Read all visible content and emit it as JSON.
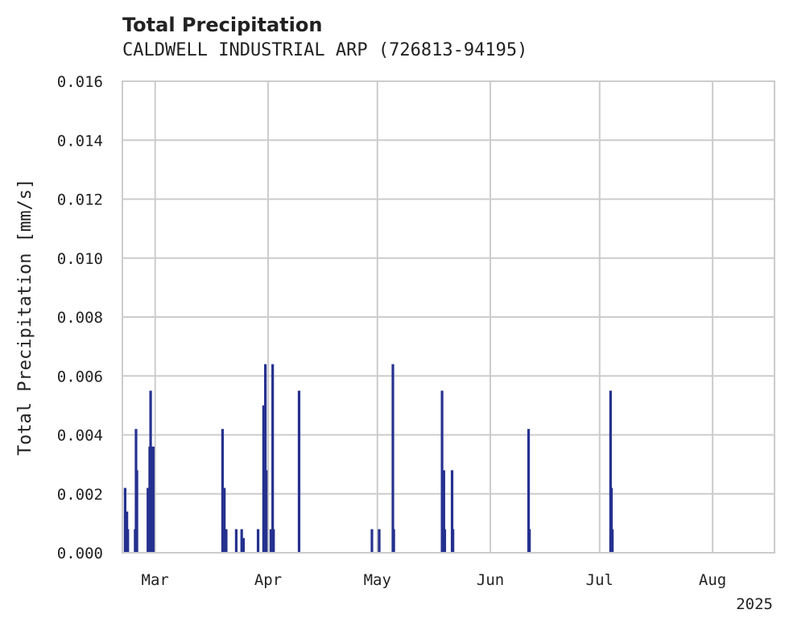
{
  "chart_data": {
    "type": "bar",
    "title": "Total Precipitation",
    "subtitle": "CALDWELL INDUSTRIAL ARP (726813-94195)",
    "ylabel": "Total Precipitation [mm/s]",
    "xlabel": "",
    "ylim": [
      0,
      0.016
    ],
    "yticks": [
      "0.000",
      "0.002",
      "0.004",
      "0.006",
      "0.008",
      "0.010",
      "0.012",
      "0.014",
      "0.016"
    ],
    "xlim": [
      "2025-02-20",
      "2025-08-18"
    ],
    "xticks": [
      {
        "date": "2025-03-01",
        "label": "Mar"
      },
      {
        "date": "2025-04-01",
        "label": "Apr"
      },
      {
        "date": "2025-05-01",
        "label": "May"
      },
      {
        "date": "2025-06-01",
        "label": "Jun"
      },
      {
        "date": "2025-07-01",
        "label": "Jul"
      },
      {
        "date": "2025-08-01",
        "label": "Aug"
      }
    ],
    "year_label": "2025",
    "grid": true,
    "color": "#25318f",
    "x": [
      "2025-02-20T18:00",
      "2025-02-21T06:00",
      "2025-02-21T12:00",
      "2025-02-23T12:00",
      "2025-02-23T18:00",
      "2025-02-24T00:00",
      "2025-02-27T00:00",
      "2025-02-27T12:00",
      "2025-02-27T18:00",
      "2025-02-28T00:00",
      "2025-02-28T06:00",
      "2025-02-28T12:00",
      "2025-03-19T12:00",
      "2025-03-20T00:00",
      "2025-03-20T12:00",
      "2025-03-23T06:00",
      "2025-03-24T18:00",
      "2025-03-25T06:00",
      "2025-03-29T06:00",
      "2025-03-30T18:00",
      "2025-03-31T06:00",
      "2025-03-31T12:00",
      "2025-04-01T18:00",
      "2025-04-02T06:00",
      "2025-04-02T12:00",
      "2025-04-09T12:00",
      "2025-04-29T12:00",
      "2025-05-01T12:00",
      "2025-05-05T06:00",
      "2025-05-05T12:00",
      "2025-05-18T18:00",
      "2025-05-19T06:00",
      "2025-05-19T12:00",
      "2025-05-21T12:00",
      "2025-05-21T18:00",
      "2025-06-11T12:00",
      "2025-06-11T18:00",
      "2025-07-04T00:00",
      "2025-07-04T06:00",
      "2025-07-04T12:00"
    ],
    "values": [
      0.0022,
      0.0014,
      0.0008,
      0.0008,
      0.0042,
      0.0028,
      0.0022,
      0.0036,
      0.0055,
      0.0036,
      0.0036,
      0.0036,
      0.0042,
      0.0022,
      0.0008,
      0.0008,
      0.0008,
      0.0005,
      0.0008,
      0.005,
      0.0064,
      0.0028,
      0.0008,
      0.0064,
      0.0008,
      0.0055,
      0.0008,
      0.0008,
      0.0064,
      0.0008,
      0.0055,
      0.0028,
      0.0008,
      0.0028,
      0.0008,
      0.0042,
      0.0008,
      0.0055,
      0.0022,
      0.0008
    ]
  }
}
